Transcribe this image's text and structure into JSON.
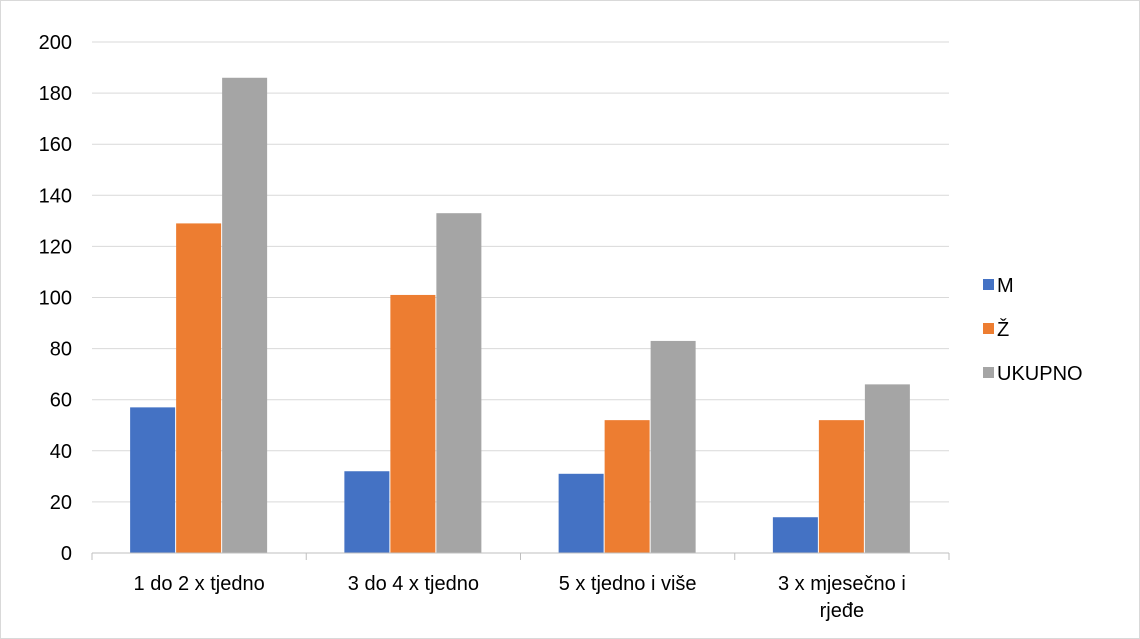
{
  "chart_data": {
    "type": "bar",
    "title": "",
    "xlabel": "",
    "ylabel": "",
    "categories": [
      [
        "1 do 2 x tjedno"
      ],
      [
        "3 do 4 x tjedno"
      ],
      [
        "5 x tjedno i više"
      ],
      [
        "3 x mjesečno i",
        "rjeđe"
      ]
    ],
    "series": [
      {
        "name": "M",
        "color": "#4472c4",
        "values": [
          57,
          32,
          31,
          14
        ]
      },
      {
        "name": "Ž",
        "color": "#ed7d31",
        "values": [
          129,
          101,
          52,
          52
        ]
      },
      {
        "name": "UKUPNO",
        "color": "#a5a5a5",
        "values": [
          186,
          133,
          83,
          66
        ]
      }
    ],
    "ylim": [
      0,
      200
    ],
    "yticks": [
      0,
      20,
      40,
      60,
      80,
      100,
      120,
      140,
      160,
      180,
      200
    ],
    "grid": true,
    "legend": "right"
  }
}
